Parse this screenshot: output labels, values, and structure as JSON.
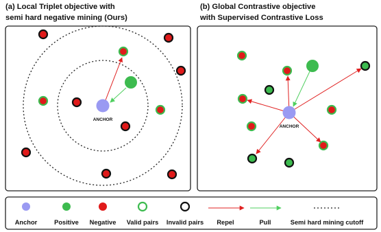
{
  "panel_a": {
    "title_line1": "(a) Local Triplet objective with",
    "title_line2": "semi hard negative mining (Ours)",
    "anchor_label": "ANCHOR"
  },
  "panel_b": {
    "title_line1": "(b) Global Contrastive objective",
    "title_line2": "with Supervised Contrastive Loss",
    "anchor_label": "ANCHOR"
  },
  "legend": {
    "anchor": "Anchor",
    "positive": "Positive",
    "negative": "Negative",
    "valid_pairs": "Valid pairs",
    "invalid_pairs": "Invalid pairs",
    "repel": "Repel",
    "pull": "Pull",
    "cutoff": "Semi hard mining cutoff"
  },
  "colors": {
    "anchor": "#9a9af2",
    "positive": "#3dbb4f",
    "negative": "#e01a1a",
    "valid_ring": "#3dbb4f",
    "invalid_ring": "#111111",
    "repel_arrow": "#e02020",
    "pull_arrow": "#4fcf5f"
  }
}
